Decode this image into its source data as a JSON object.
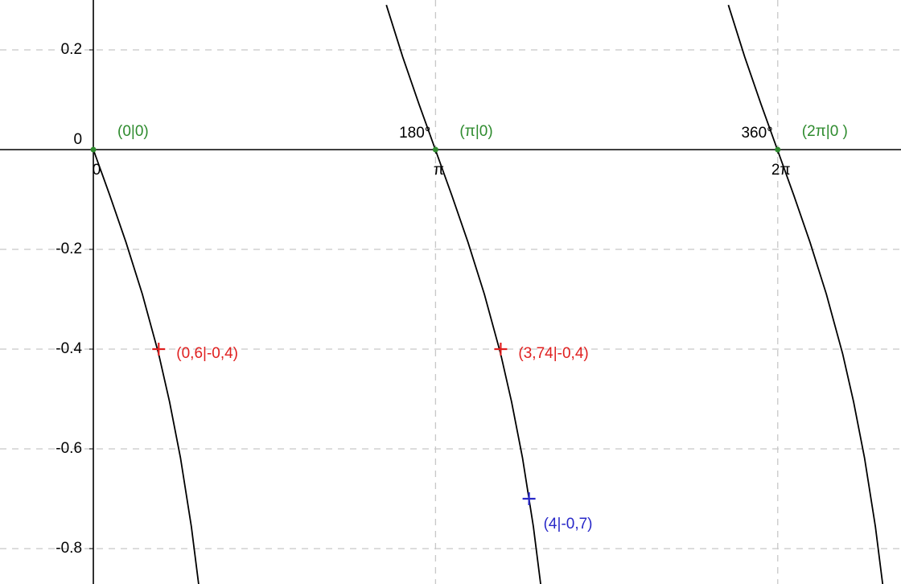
{
  "chart_data": {
    "type": "line",
    "xlim": [
      -0.857,
      7.415
    ],
    "ylim": [
      -0.871,
      0.3
    ],
    "xticks": [
      0,
      {
        "value": 3.1416,
        "label": "π"
      },
      {
        "value": 6.2832,
        "label": "2π"
      }
    ],
    "yticks": [
      0.2,
      0,
      -0.2,
      -0.4,
      -0.6,
      -0.8
    ],
    "grid": true,
    "curves": [
      {
        "color": "#000000",
        "x": [
          0,
          0.15,
          0.3,
          0.45,
          0.6,
          0.7,
          0.8,
          0.9,
          0.97
        ],
        "y": [
          0,
          -0.091,
          -0.186,
          -0.29,
          -0.41,
          -0.506,
          -0.618,
          -0.756,
          -0.877
        ]
      },
      {
        "color": "#000000",
        "x": [
          2.69,
          2.84,
          2.99,
          3.14,
          3.29,
          3.44,
          3.59,
          3.74,
          3.84,
          3.94,
          4.04,
          4.11
        ],
        "y": [
          0.29,
          0.186,
          0.091,
          0,
          -0.091,
          -0.186,
          -0.29,
          -0.41,
          -0.506,
          -0.618,
          -0.756,
          -0.877
        ]
      },
      {
        "color": "#000000",
        "x": [
          5.83,
          5.98,
          6.13,
          6.28,
          6.43,
          6.58,
          6.73,
          6.88,
          6.98,
          7.08,
          7.18,
          7.25
        ],
        "y": [
          0.29,
          0.186,
          0.091,
          0,
          -0.091,
          -0.186,
          -0.29,
          -0.41,
          -0.506,
          -0.618,
          -0.756,
          -0.877
        ]
      }
    ],
    "points": [
      {
        "x": 0,
        "y": 0,
        "label": "(0|0)",
        "color": "#2e8b2e"
      },
      {
        "x": 3.1416,
        "y": 0,
        "label": "(π|0)",
        "color": "#2e8b2e"
      },
      {
        "x": 6.2832,
        "y": 0,
        "label": "(2π|0 )",
        "color": "#2e8b2e"
      },
      {
        "x": 0.6,
        "y": -0.4,
        "label": "(0,6|-0,4)",
        "color": "#e02020"
      },
      {
        "x": 3.74,
        "y": -0.4,
        "label": "(3,74|-0,4)",
        "color": "#e02020"
      },
      {
        "x": 4,
        "y": -0.7,
        "label": "(4|-0,7)",
        "color": "#2828c8"
      }
    ],
    "angle_labels": [
      {
        "x": 3.1416,
        "label": "180°"
      },
      {
        "x": 6.2832,
        "label": "360°"
      }
    ]
  }
}
